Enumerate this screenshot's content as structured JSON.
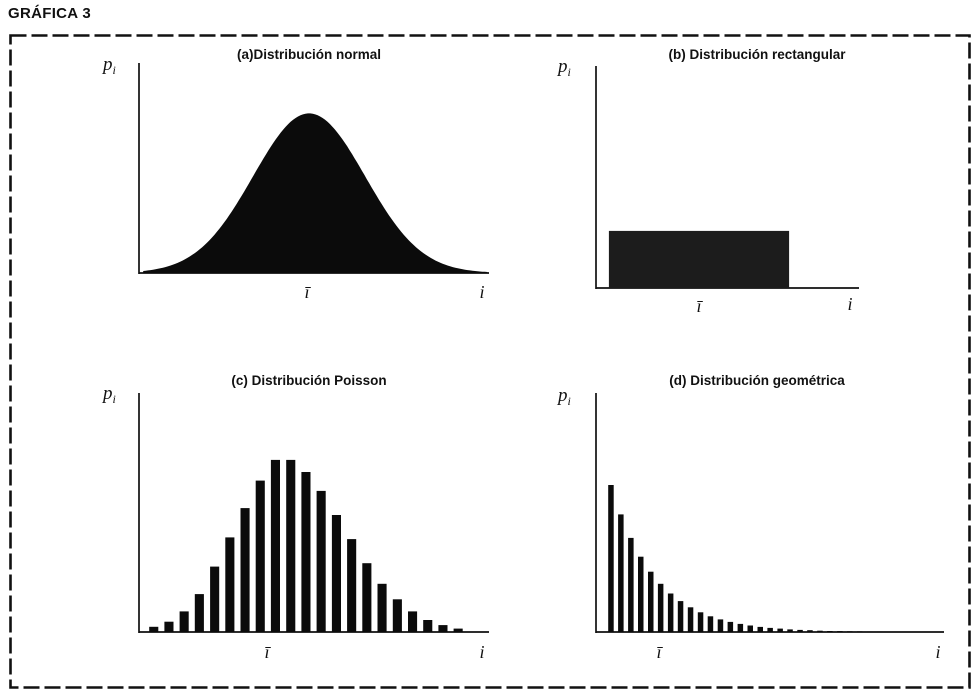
{
  "figure": {
    "label": "GRÁFICA 3"
  },
  "chart_data": [
    {
      "id": "a",
      "type": "area",
      "title": "(a)Distribución normal",
      "ylabel_main": "p",
      "ylabel_sub": "i",
      "xtick_mean": "ī",
      "xtick_end": "i",
      "fill": "#0b0b0b",
      "axis": {
        "grid": false,
        "ticks_labeled": false
      },
      "curve": {
        "shape": "gaussian",
        "mean_frac": 0.486,
        "sigma_frac": 0.16,
        "peak_frac": 0.76,
        "x_start_frac": 0.012,
        "x_end_frac": 0.995
      }
    },
    {
      "id": "b",
      "type": "bar",
      "title": "(b) Distribución rectangular",
      "ylabel_main": "p",
      "ylabel_sub": "i",
      "xtick_mean": "ī",
      "xtick_end": "i",
      "fill": "#1c1c1c",
      "axis": {
        "grid": false,
        "ticks_labeled": false
      },
      "rect": {
        "x_start_frac": 0.049,
        "x_end_frac": 0.734,
        "height_frac": 0.257
      }
    },
    {
      "id": "c",
      "type": "bar",
      "title": "(c) Distribución Poisson",
      "ylabel_main": "p",
      "ylabel_sub": "i",
      "xtick_mean": "ī",
      "xtick_end": "i",
      "fill": "#0b0b0b",
      "axis": {
        "grid": false,
        "ticks_labeled": false
      },
      "values": [
        0.03,
        0.06,
        0.12,
        0.22,
        0.38,
        0.55,
        0.72,
        0.88,
        1.0,
        1.0,
        0.93,
        0.82,
        0.68,
        0.54,
        0.4,
        0.28,
        0.19,
        0.12,
        0.07,
        0.04,
        0.02
      ],
      "bar_layout": {
        "x_start_frac": 0.029,
        "pitch_frac": 0.0435,
        "width_frac": 0.026,
        "ymax_frac": 0.72
      }
    },
    {
      "id": "d",
      "type": "bar",
      "title": "(d) Distribución geométrica",
      "ylabel_main": "p",
      "ylabel_sub": "i",
      "xtick_mean": "ī",
      "xtick_end": "i",
      "fill": "#0b0b0b",
      "axis": {
        "grid": false,
        "ticks_labeled": false
      },
      "values": [
        1.0,
        0.8,
        0.64,
        0.512,
        0.41,
        0.328,
        0.262,
        0.21,
        0.168,
        0.134,
        0.107,
        0.086,
        0.069,
        0.055,
        0.044,
        0.035,
        0.028,
        0.023,
        0.018,
        0.014,
        0.012,
        0.009,
        0.007,
        0.006,
        0.005,
        0.004,
        0.003,
        0.002
      ],
      "bar_layout": {
        "x_start_frac": 0.035,
        "pitch_frac": 0.0286,
        "width_frac": 0.0158,
        "ymax_frac": 0.615
      }
    }
  ]
}
